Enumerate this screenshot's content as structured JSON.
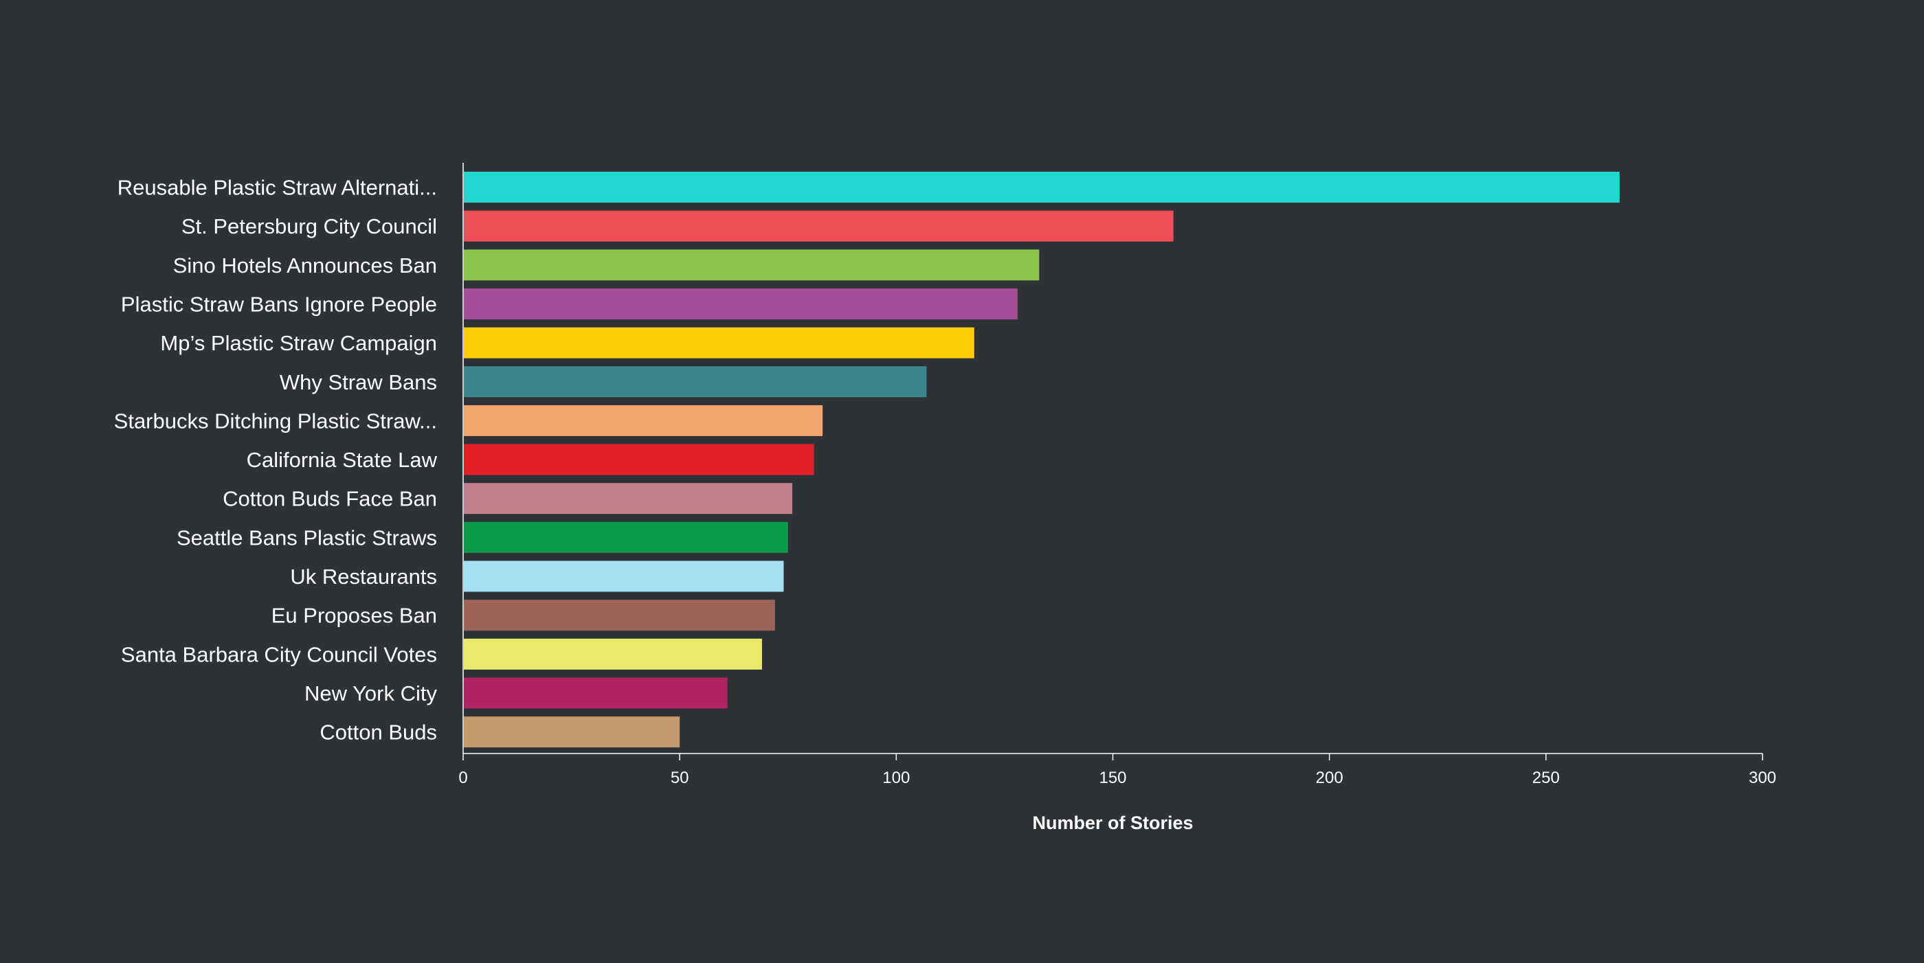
{
  "chart_data": {
    "type": "bar",
    "orientation": "horizontal",
    "categories": [
      "Reusable Plastic Straw Alternati...",
      "St. Petersburg City Council",
      "Sino Hotels Announces Ban",
      "Plastic Straw Bans Ignore People",
      "Mp’s Plastic Straw Campaign",
      "Why Straw Bans",
      "Starbucks Ditching Plastic Straw...",
      "California State Law",
      "Cotton Buds Face Ban",
      "Seattle Bans Plastic Straws",
      "Uk Restaurants",
      "Eu Proposes Ban",
      "Santa Barbara City Council Votes",
      "New York City",
      "Cotton Buds"
    ],
    "values": [
      267,
      164,
      133,
      128,
      118,
      107,
      83,
      81,
      76,
      75,
      74,
      72,
      69,
      61,
      50
    ],
    "colors": [
      "#22d6d0",
      "#ef4f57",
      "#8ac449",
      "#a64d9b",
      "#fdcd03",
      "#3c878e",
      "#f3a66b",
      "#e51f28",
      "#c2818c",
      "#099a4a",
      "#a4e0f4",
      "#9c6456",
      "#e9ea69",
      "#b12365",
      "#c49a6f"
    ],
    "xlabel": "Number of Stories",
    "ylabel": "",
    "xlim": [
      0,
      300
    ],
    "xticks": [
      0,
      50,
      100,
      150,
      200,
      250,
      300
    ],
    "grid": false,
    "legend": "none"
  }
}
